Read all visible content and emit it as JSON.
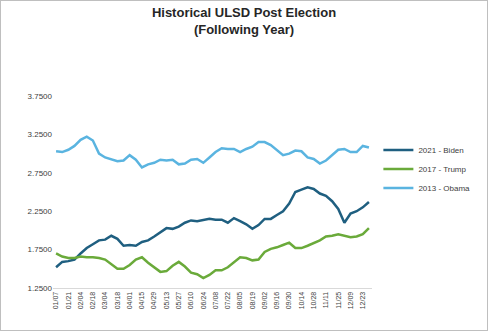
{
  "chart_data": {
    "type": "line",
    "title": "Historical ULSD Post Election",
    "subtitle": "(Following Year)",
    "categories": [
      "01/07",
      null,
      "01/21",
      null,
      "02/04",
      null,
      "02/18",
      null,
      "03/04",
      null,
      "03/18",
      null,
      "04/01",
      null,
      "04/15",
      null,
      "04/29",
      null,
      "05/13",
      null,
      "05/27",
      null,
      "06/10",
      null,
      "06/24",
      null,
      "07/08",
      null,
      "07/22",
      null,
      "08/05",
      null,
      "08/19",
      null,
      "09/02",
      null,
      "09/16",
      null,
      "09/30",
      null,
      "10/14",
      null,
      "10/28",
      null,
      "11/11",
      null,
      "11/25",
      null,
      "12/09",
      null,
      "12/23",
      null
    ],
    "series": [
      {
        "name": "2021 - Biden",
        "color": "#1f5f80",
        "values": [
          1.52,
          1.59,
          1.6,
          1.62,
          1.7,
          1.77,
          1.82,
          1.87,
          1.88,
          1.93,
          1.89,
          1.8,
          1.81,
          1.8,
          1.85,
          1.87,
          1.92,
          1.97,
          2.03,
          2.02,
          2.05,
          2.1,
          2.13,
          2.12,
          2.14,
          2.15,
          2.14,
          2.14,
          2.1,
          2.16,
          2.12,
          2.08,
          2.02,
          2.07,
          2.15,
          2.15,
          2.2,
          2.25,
          2.35,
          2.5,
          2.53,
          2.56,
          2.54,
          2.48,
          2.45,
          2.38,
          2.28,
          2.1,
          2.22,
          2.25,
          2.3,
          2.37
        ]
      },
      {
        "name": "2017 - Trump",
        "color": "#6aaa3a",
        "values": [
          1.7,
          1.66,
          1.64,
          1.64,
          1.66,
          1.65,
          1.65,
          1.64,
          1.62,
          1.56,
          1.5,
          1.5,
          1.55,
          1.62,
          1.65,
          1.58,
          1.52,
          1.46,
          1.47,
          1.54,
          1.59,
          1.53,
          1.45,
          1.43,
          1.38,
          1.42,
          1.48,
          1.48,
          1.52,
          1.58,
          1.65,
          1.64,
          1.61,
          1.62,
          1.72,
          1.76,
          1.78,
          1.81,
          1.84,
          1.77,
          1.77,
          1.8,
          1.83,
          1.87,
          1.92,
          1.93,
          1.95,
          1.93,
          1.91,
          1.92,
          1.95,
          2.03
        ]
      },
      {
        "name": "2013 - Obama",
        "color": "#5ab4e0",
        "values": [
          3.03,
          3.02,
          3.05,
          3.1,
          3.18,
          3.22,
          3.17,
          3.0,
          2.95,
          2.93,
          2.9,
          2.91,
          2.98,
          2.92,
          2.82,
          2.86,
          2.88,
          2.92,
          2.91,
          2.92,
          2.86,
          2.87,
          2.92,
          2.93,
          2.88,
          2.95,
          3.02,
          3.07,
          3.06,
          3.06,
          3.02,
          3.06,
          3.09,
          3.15,
          3.15,
          3.11,
          3.05,
          2.98,
          3.0,
          3.04,
          3.03,
          2.95,
          2.93,
          2.87,
          2.91,
          2.98,
          3.05,
          3.06,
          3.02,
          3.02,
          3.1,
          3.08
        ]
      }
    ],
    "ylim": [
      1.25,
      3.75
    ],
    "yticks": [
      {
        "value": 1.25,
        "label": "1.2500"
      },
      {
        "value": 1.75,
        "label": "1.7500"
      },
      {
        "value": 2.25,
        "label": "2.2500"
      },
      {
        "value": 2.75,
        "label": "2.7500"
      },
      {
        "value": 3.25,
        "label": "3.2500"
      },
      {
        "value": 3.75,
        "label": "3.7500"
      }
    ],
    "grid": false,
    "legend": "right"
  }
}
